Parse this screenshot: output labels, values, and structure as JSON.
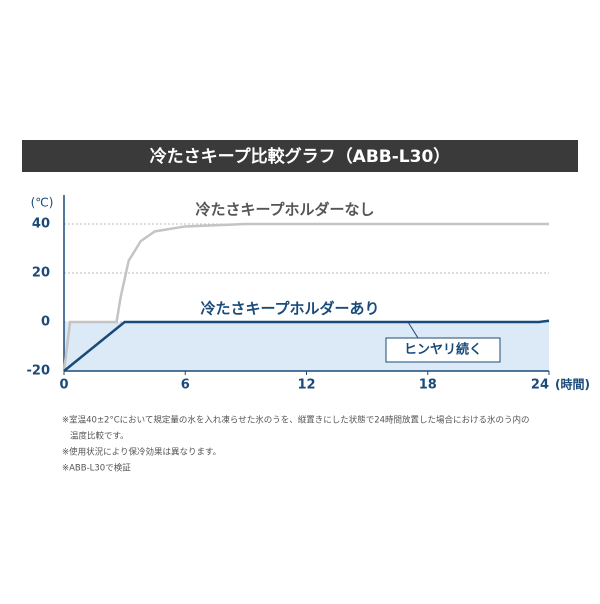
{
  "chart_data": {
    "type": "line",
    "title": "冷たさキープ比較グラフ（ABB-L30）",
    "ylabel": "(℃)",
    "xlabel": "(時間)",
    "xlim": [
      0,
      24
    ],
    "xticks": [
      0,
      6,
      12,
      18,
      24
    ],
    "ylim": [
      -20,
      40
    ],
    "yticks": [
      -20,
      0,
      20,
      40
    ],
    "grid": true,
    "series": [
      {
        "name": "冷たさキープホルダーなし",
        "color": "#c4c4c4",
        "x": [
          0,
          0.3,
          2.6,
          2.8,
          3.2,
          3.8,
          4.5,
          6,
          9,
          24
        ],
        "values": [
          -20,
          0,
          0,
          10,
          25,
          33,
          37,
          39,
          40,
          40
        ]
      },
      {
        "name": "冷たさキープホルダーあり",
        "color": "#1a4a7a",
        "x": [
          0,
          3,
          23.5,
          24
        ],
        "values": [
          -20,
          0,
          0,
          0.5
        ]
      }
    ],
    "annotation": "ヒンヤリ続く"
  },
  "notes": [
    "※室温40±2°Cにおいて規定量の水を入れ凍らせた氷のうを、縦置きにした状態で24時間放置した場合における氷のう内の",
    "温度比較です。",
    "※使用状況により保冷効果は異なります。",
    "※ABB-L30で検証"
  ]
}
